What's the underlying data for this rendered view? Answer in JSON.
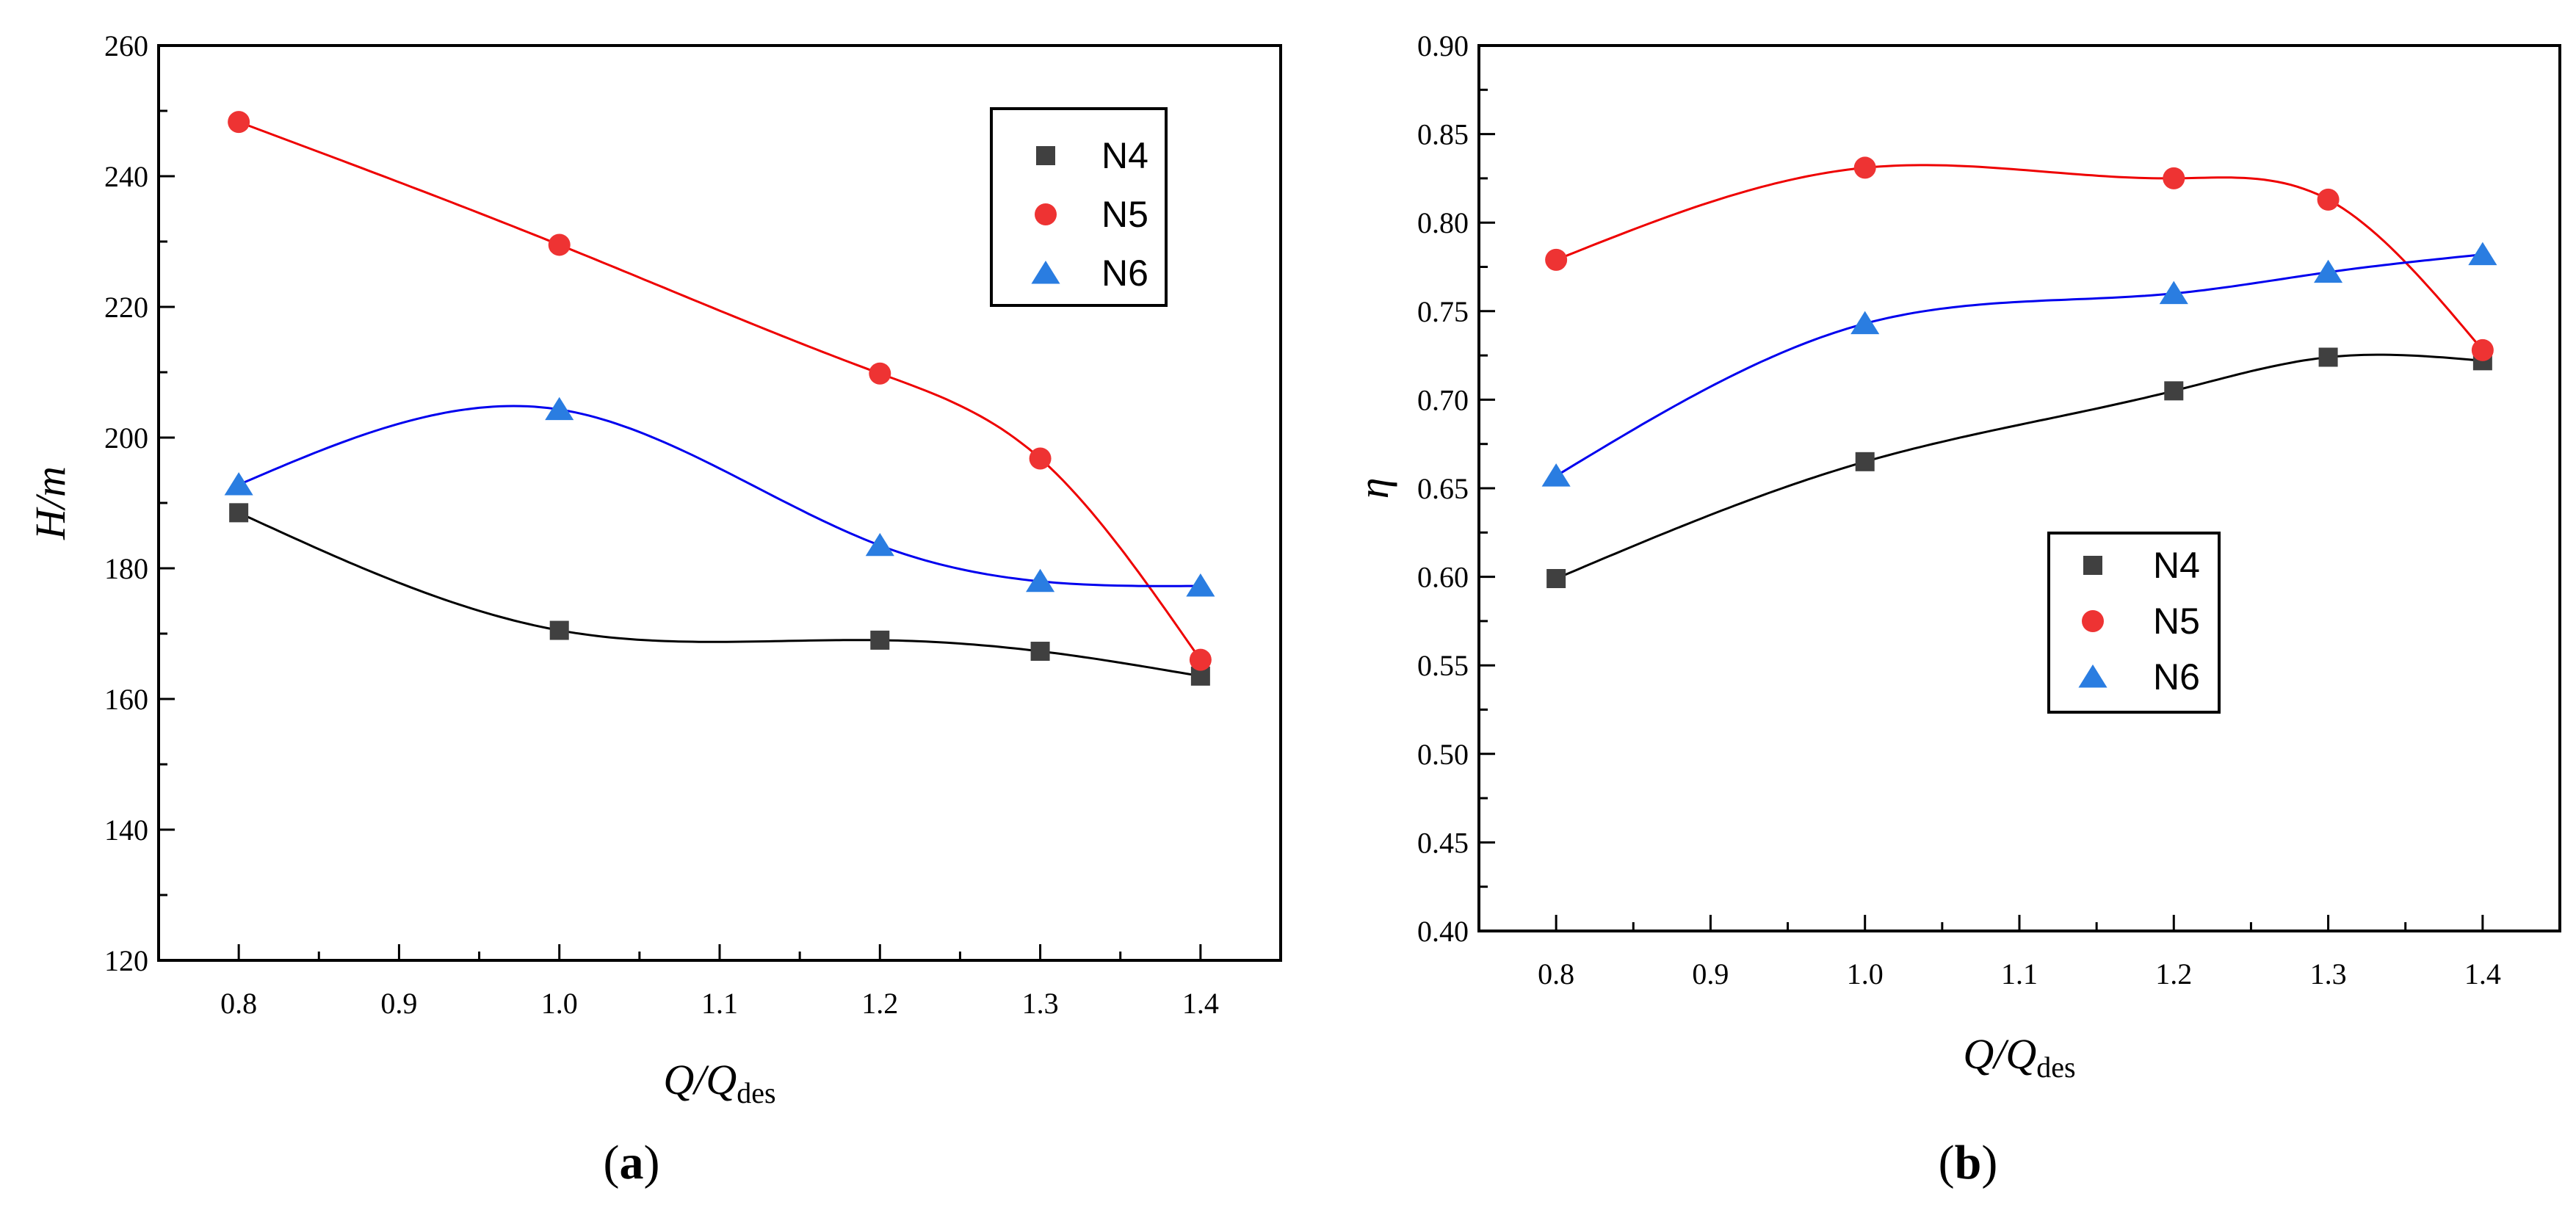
{
  "chart_data": [
    {
      "type": "scatter",
      "panel_label": "a",
      "xlabel": "Q/Q",
      "xlabel_subscript": "des",
      "ylabel": "H/m",
      "xlim": [
        0.75,
        1.45
      ],
      "ylim": [
        120,
        260
      ],
      "xticks": [
        0.8,
        0.9,
        1.0,
        1.1,
        1.2,
        1.3,
        1.4
      ],
      "xtick_labels": [
        "0.8",
        "0.9",
        "1.0",
        "1.1",
        "1.2",
        "1.3",
        "1.4"
      ],
      "yticks": [
        120,
        140,
        160,
        180,
        200,
        220,
        240,
        260
      ],
      "ytick_labels": [
        "120",
        "140",
        "160",
        "180",
        "200",
        "220",
        "240",
        "260"
      ],
      "legend_position": "top-right",
      "x": [
        0.8,
        1.0,
        1.2,
        1.3,
        1.4
      ],
      "series": [
        {
          "name": "N4",
          "marker": "square",
          "color": "#404040",
          "line_color": "#000000",
          "values": [
            188.5,
            170.5,
            169.0,
            167.3,
            163.5
          ]
        },
        {
          "name": "N5",
          "marker": "circle",
          "color": "#ee3333",
          "line_color": "#ee0000",
          "values": [
            248.3,
            229.5,
            209.8,
            196.8,
            166.0
          ]
        },
        {
          "name": "N6",
          "marker": "triangle",
          "color": "#2a7de1",
          "line_color": "#0000ee",
          "values": [
            192.8,
            204.3,
            183.5,
            178.0,
            177.3
          ]
        }
      ]
    },
    {
      "type": "scatter",
      "panel_label": "b",
      "xlabel": "Q/Q",
      "xlabel_subscript": "des",
      "ylabel": "η",
      "xlim": [
        0.75,
        1.45
      ],
      "ylim": [
        0.4,
        0.9
      ],
      "xticks": [
        0.8,
        0.9,
        1.0,
        1.1,
        1.2,
        1.3,
        1.4
      ],
      "xtick_labels": [
        "0.8",
        "0.9",
        "1.0",
        "1.1",
        "1.2",
        "1.3",
        "1.4"
      ],
      "yticks": [
        0.4,
        0.45,
        0.5,
        0.55,
        0.6,
        0.65,
        0.7,
        0.75,
        0.8,
        0.85,
        0.9
      ],
      "ytick_labels": [
        "0.40",
        "0.45",
        "0.50",
        "0.55",
        "0.60",
        "0.65",
        "0.70",
        "0.75",
        "0.80",
        "0.85",
        "0.90"
      ],
      "legend_position": "center",
      "x": [
        0.8,
        1.0,
        1.2,
        1.3,
        1.4
      ],
      "series": [
        {
          "name": "N4",
          "marker": "square",
          "color": "#404040",
          "line_color": "#000000",
          "values": [
            0.599,
            0.665,
            0.705,
            0.724,
            0.722
          ]
        },
        {
          "name": "N5",
          "marker": "circle",
          "color": "#ee3333",
          "line_color": "#ee0000",
          "values": [
            0.779,
            0.831,
            0.825,
            0.813,
            0.728
          ]
        },
        {
          "name": "N6",
          "marker": "triangle",
          "color": "#2a7de1",
          "line_color": "#0000ee",
          "values": [
            0.657,
            0.743,
            0.76,
            0.772,
            0.782
          ]
        }
      ]
    }
  ]
}
